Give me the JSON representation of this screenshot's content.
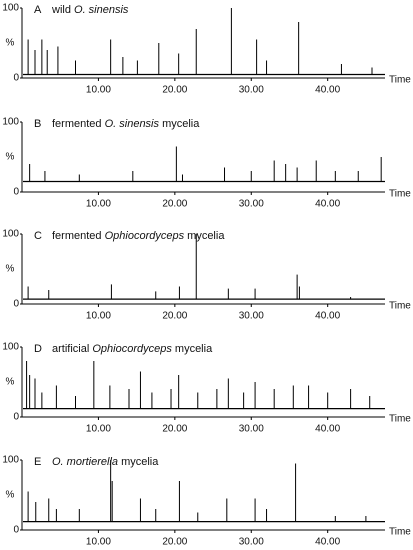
{
  "chart_data": [
    {
      "type": "stem",
      "label": "A",
      "title_parts": [
        {
          "text": "wild "
        },
        {
          "text": "O. sinensis",
          "italic": true
        }
      ],
      "x": [
        0.8,
        1.7,
        2.6,
        3.3,
        4.7,
        7.0,
        11.6,
        13.2,
        15.1,
        17.9,
        20.5,
        22.8,
        27.4,
        30.7,
        32.0,
        36.2,
        41.8,
        45.8
      ],
      "values": [
        55,
        40,
        55,
        40,
        45,
        25,
        55,
        30,
        25,
        50,
        35,
        70,
        100,
        55,
        25,
        80,
        20,
        15
      ],
      "baseline": 5,
      "color": "#000000",
      "xlabel": "Time",
      "ylabel": "%",
      "xlim": [
        0,
        47.5
      ],
      "xticks": [
        {
          "value": 10,
          "label": "10.00"
        },
        {
          "value": 20,
          "label": "20.00"
        },
        {
          "value": 30,
          "label": "30.00"
        },
        {
          "value": 40,
          "label": "40.00"
        }
      ],
      "ylim": [
        0,
        100
      ],
      "yticks": [
        0,
        100
      ]
    },
    {
      "type": "stem",
      "label": "B",
      "title_parts": [
        {
          "text": "fermented "
        },
        {
          "text": "O. sinensis",
          "italic": true
        },
        {
          "text": " mycelia"
        }
      ],
      "x": [
        1.0,
        3.0,
        7.5,
        14.5,
        20.2,
        21.0,
        26.5,
        30.0,
        33.0,
        34.5,
        36.0,
        38.5,
        41.0,
        44.0,
        47.0
      ],
      "values": [
        40,
        30,
        25,
        30,
        65,
        25,
        35,
        30,
        45,
        40,
        35,
        45,
        30,
        30,
        50
      ],
      "baseline": 15,
      "color": "#000000",
      "xlabel": "Time",
      "ylabel": "%",
      "xlim": [
        0,
        47.5
      ],
      "xticks": [
        {
          "value": 10,
          "label": "10.00"
        },
        {
          "value": 20,
          "label": "20.00"
        },
        {
          "value": 30,
          "label": "30.00"
        },
        {
          "value": 40,
          "label": "40.00"
        }
      ],
      "ylim": [
        0,
        100
      ],
      "yticks": [
        0,
        100
      ]
    },
    {
      "type": "stem",
      "label": "C",
      "title_parts": [
        {
          "text": "fermented "
        },
        {
          "text": "Ophiocordyceps",
          "italic": true
        },
        {
          "text": " mycelia"
        }
      ],
      "x": [
        0.8,
        3.5,
        11.7,
        17.5,
        20.6,
        22.8,
        27.0,
        30.5,
        36.0,
        36.3,
        43.0
      ],
      "values": [
        25,
        20,
        28,
        18,
        25,
        100,
        22,
        22,
        42,
        25,
        10
      ],
      "baseline": 7,
      "color": "#000000",
      "xlabel": "Time",
      "ylabel": "%",
      "xlim": [
        0,
        47.5
      ],
      "xticks": [
        {
          "value": 10,
          "label": "10.00"
        },
        {
          "value": 20,
          "label": "20.00"
        },
        {
          "value": 30,
          "label": "30.00"
        },
        {
          "value": 40,
          "label": "40.00"
        }
      ],
      "ylim": [
        0,
        100
      ],
      "yticks": [
        0,
        100
      ]
    },
    {
      "type": "stem",
      "label": "D",
      "title_parts": [
        {
          "text": "artificial "
        },
        {
          "text": "Ophiocordyceps",
          "italic": true
        },
        {
          "text": " mycelia"
        }
      ],
      "x": [
        0.6,
        1.0,
        1.7,
        2.6,
        4.5,
        7.0,
        9.4,
        11.5,
        14.0,
        15.5,
        17.0,
        19.5,
        20.5,
        23.0,
        25.5,
        27.0,
        29.0,
        30.5,
        33.0,
        35.5,
        37.5,
        40.0,
        43.0,
        45.5
      ],
      "values": [
        80,
        60,
        55,
        35,
        45,
        30,
        80,
        45,
        40,
        65,
        35,
        40,
        60,
        35,
        40,
        55,
        35,
        50,
        40,
        45,
        45,
        35,
        40,
        30
      ],
      "baseline": 12,
      "color": "#000000",
      "xlabel": "Time",
      "ylabel": "%",
      "xlim": [
        0,
        47.5
      ],
      "xticks": [
        {
          "value": 10,
          "label": "10.00"
        },
        {
          "value": 20,
          "label": "20.00"
        },
        {
          "value": 30,
          "label": "30.00"
        },
        {
          "value": 40,
          "label": "40.00"
        }
      ],
      "ylim": [
        0,
        100
      ],
      "yticks": [
        0,
        100
      ]
    },
    {
      "type": "stem",
      "label": "E",
      "title_parts": [
        {
          "text": "O. mortierella",
          "italic": true
        },
        {
          "text": " mycelia"
        }
      ],
      "x": [
        0.8,
        1.8,
        3.5,
        4.5,
        7.5,
        11.6,
        11.8,
        15.5,
        17.5,
        20.6,
        23.0,
        26.8,
        30.5,
        32.0,
        35.8,
        41.0,
        45.0
      ],
      "values": [
        55,
        40,
        45,
        30,
        30,
        100,
        70,
        45,
        30,
        70,
        25,
        45,
        45,
        30,
        95,
        20,
        20
      ],
      "baseline": 12,
      "color": "#000000",
      "xlabel": "Time",
      "ylabel": "%",
      "xlim": [
        0,
        47.5
      ],
      "xticks": [
        {
          "value": 10,
          "label": "10.00"
        },
        {
          "value": 20,
          "label": "20.00"
        },
        {
          "value": 30,
          "label": "30.00"
        },
        {
          "value": 40,
          "label": "40.00"
        }
      ],
      "ylim": [
        0,
        100
      ],
      "yticks": [
        0,
        100
      ]
    }
  ]
}
